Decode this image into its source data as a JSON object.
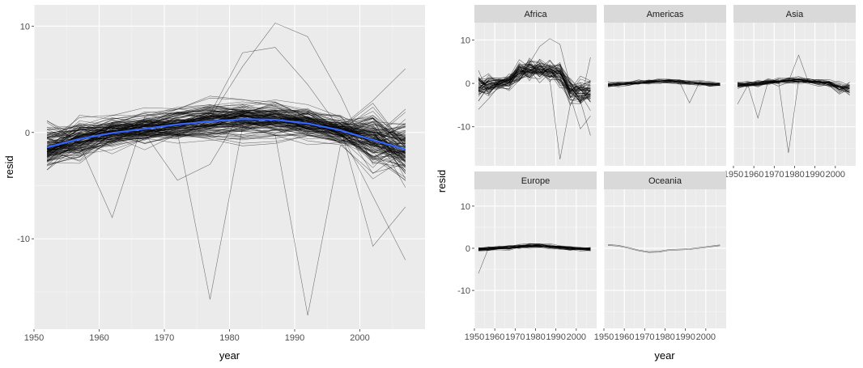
{
  "chart_data": [
    {
      "type": "line",
      "panel": "left",
      "xlabel": "year",
      "ylabel": "resid",
      "xlim": [
        1950,
        2010
      ],
      "ylim": [
        -18.5,
        12
      ],
      "x_ticks": [
        1950,
        1960,
        1970,
        1980,
        1990,
        2000
      ],
      "y_ticks": [
        -10,
        0,
        10
      ],
      "grid": true,
      "background": "#ebebeb",
      "line_color": "#000000",
      "smooth_color": "#3366ff",
      "years": [
        1952,
        1957,
        1962,
        1967,
        1972,
        1977,
        1982,
        1987,
        1992,
        1997,
        2002,
        2007
      ],
      "smooth": {
        "name": "",
        "values": [
          -1.4,
          -0.6,
          -0.05,
          0.35,
          0.75,
          1.05,
          1.25,
          1.2,
          0.85,
          0.2,
          -0.7,
          -1.6
        ]
      },
      "series_note": "142 country residual lines, overlapping"
    },
    {
      "type": "line",
      "panel": "facets",
      "xlabel": "year",
      "ylabel": "resid",
      "xlim": [
        1950,
        2010
      ],
      "ylim": [
        -19,
        14
      ],
      "x_ticks": [
        1950,
        1960,
        1970,
        1980,
        1990,
        2000
      ],
      "y_ticks": [
        -10,
        0,
        10
      ],
      "grid": true,
      "background": "#ebebeb",
      "strip_color": "#d9d9d9",
      "facets": [
        {
          "label": "Africa"
        },
        {
          "label": "Americas"
        },
        {
          "label": "Asia"
        },
        {
          "label": "Europe"
        },
        {
          "label": "Oceania"
        }
      ]
    }
  ]
}
